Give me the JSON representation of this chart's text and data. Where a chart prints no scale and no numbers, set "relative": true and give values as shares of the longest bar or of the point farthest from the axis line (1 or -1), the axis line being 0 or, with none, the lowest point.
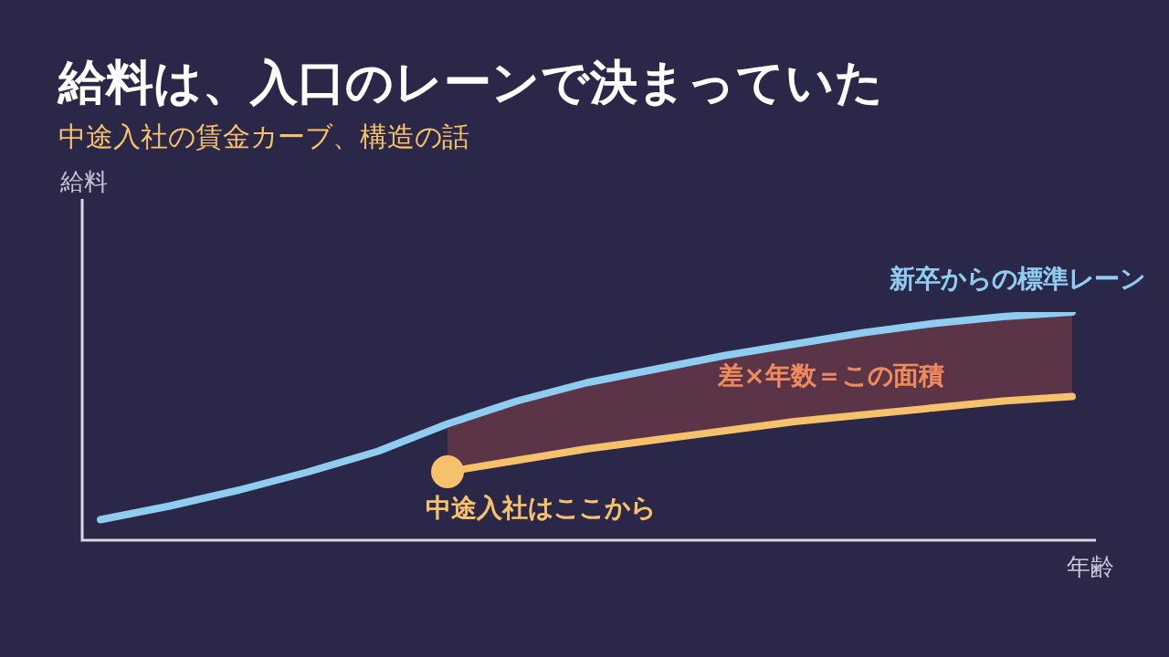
{
  "chart_data": {
    "type": "line",
    "relative": true,
    "title": "給料は、入口のレーンで決まっていた",
    "subtitle": "中途入社の賃金カーブ、構造の話",
    "xlabel": "年齢",
    "ylabel": "給料",
    "categories": [
      null,
      null,
      null,
      null,
      null,
      null,
      null,
      null,
      null,
      null,
      null,
      null,
      null,
      null,
      null
    ],
    "series": [
      {
        "name": "新卒からの標準レーン",
        "color": "#8ecdf0",
        "values": [
          0.09,
          0.15,
          0.22,
          0.3,
          0.39,
          0.51,
          0.61,
          0.69,
          0.75,
          0.81,
          0.86,
          0.91,
          0.95,
          0.98,
          1
        ],
        "lower": [
          null,
          null,
          null,
          null,
          null,
          0.3,
          0.35,
          0.4,
          0.44,
          0.48,
          0.52,
          0.55,
          0.58,
          0.61,
          0.63
        ],
        "upper": [
          null,
          null,
          null,
          null,
          null,
          0.51,
          0.61,
          0.69,
          0.75,
          0.81,
          0.86,
          0.91,
          0.95,
          0.98,
          1
        ]
      },
      {
        "name": "中途入社はここから",
        "color": "#f5c26b",
        "values": [
          null,
          null,
          null,
          null,
          null,
          0.3,
          0.35,
          0.4,
          0.44,
          0.48,
          0.52,
          0.55,
          0.58,
          0.61,
          0.63
        ]
      }
    ],
    "annotations": [
      "差×年数＝この面積"
    ]
  }
}
